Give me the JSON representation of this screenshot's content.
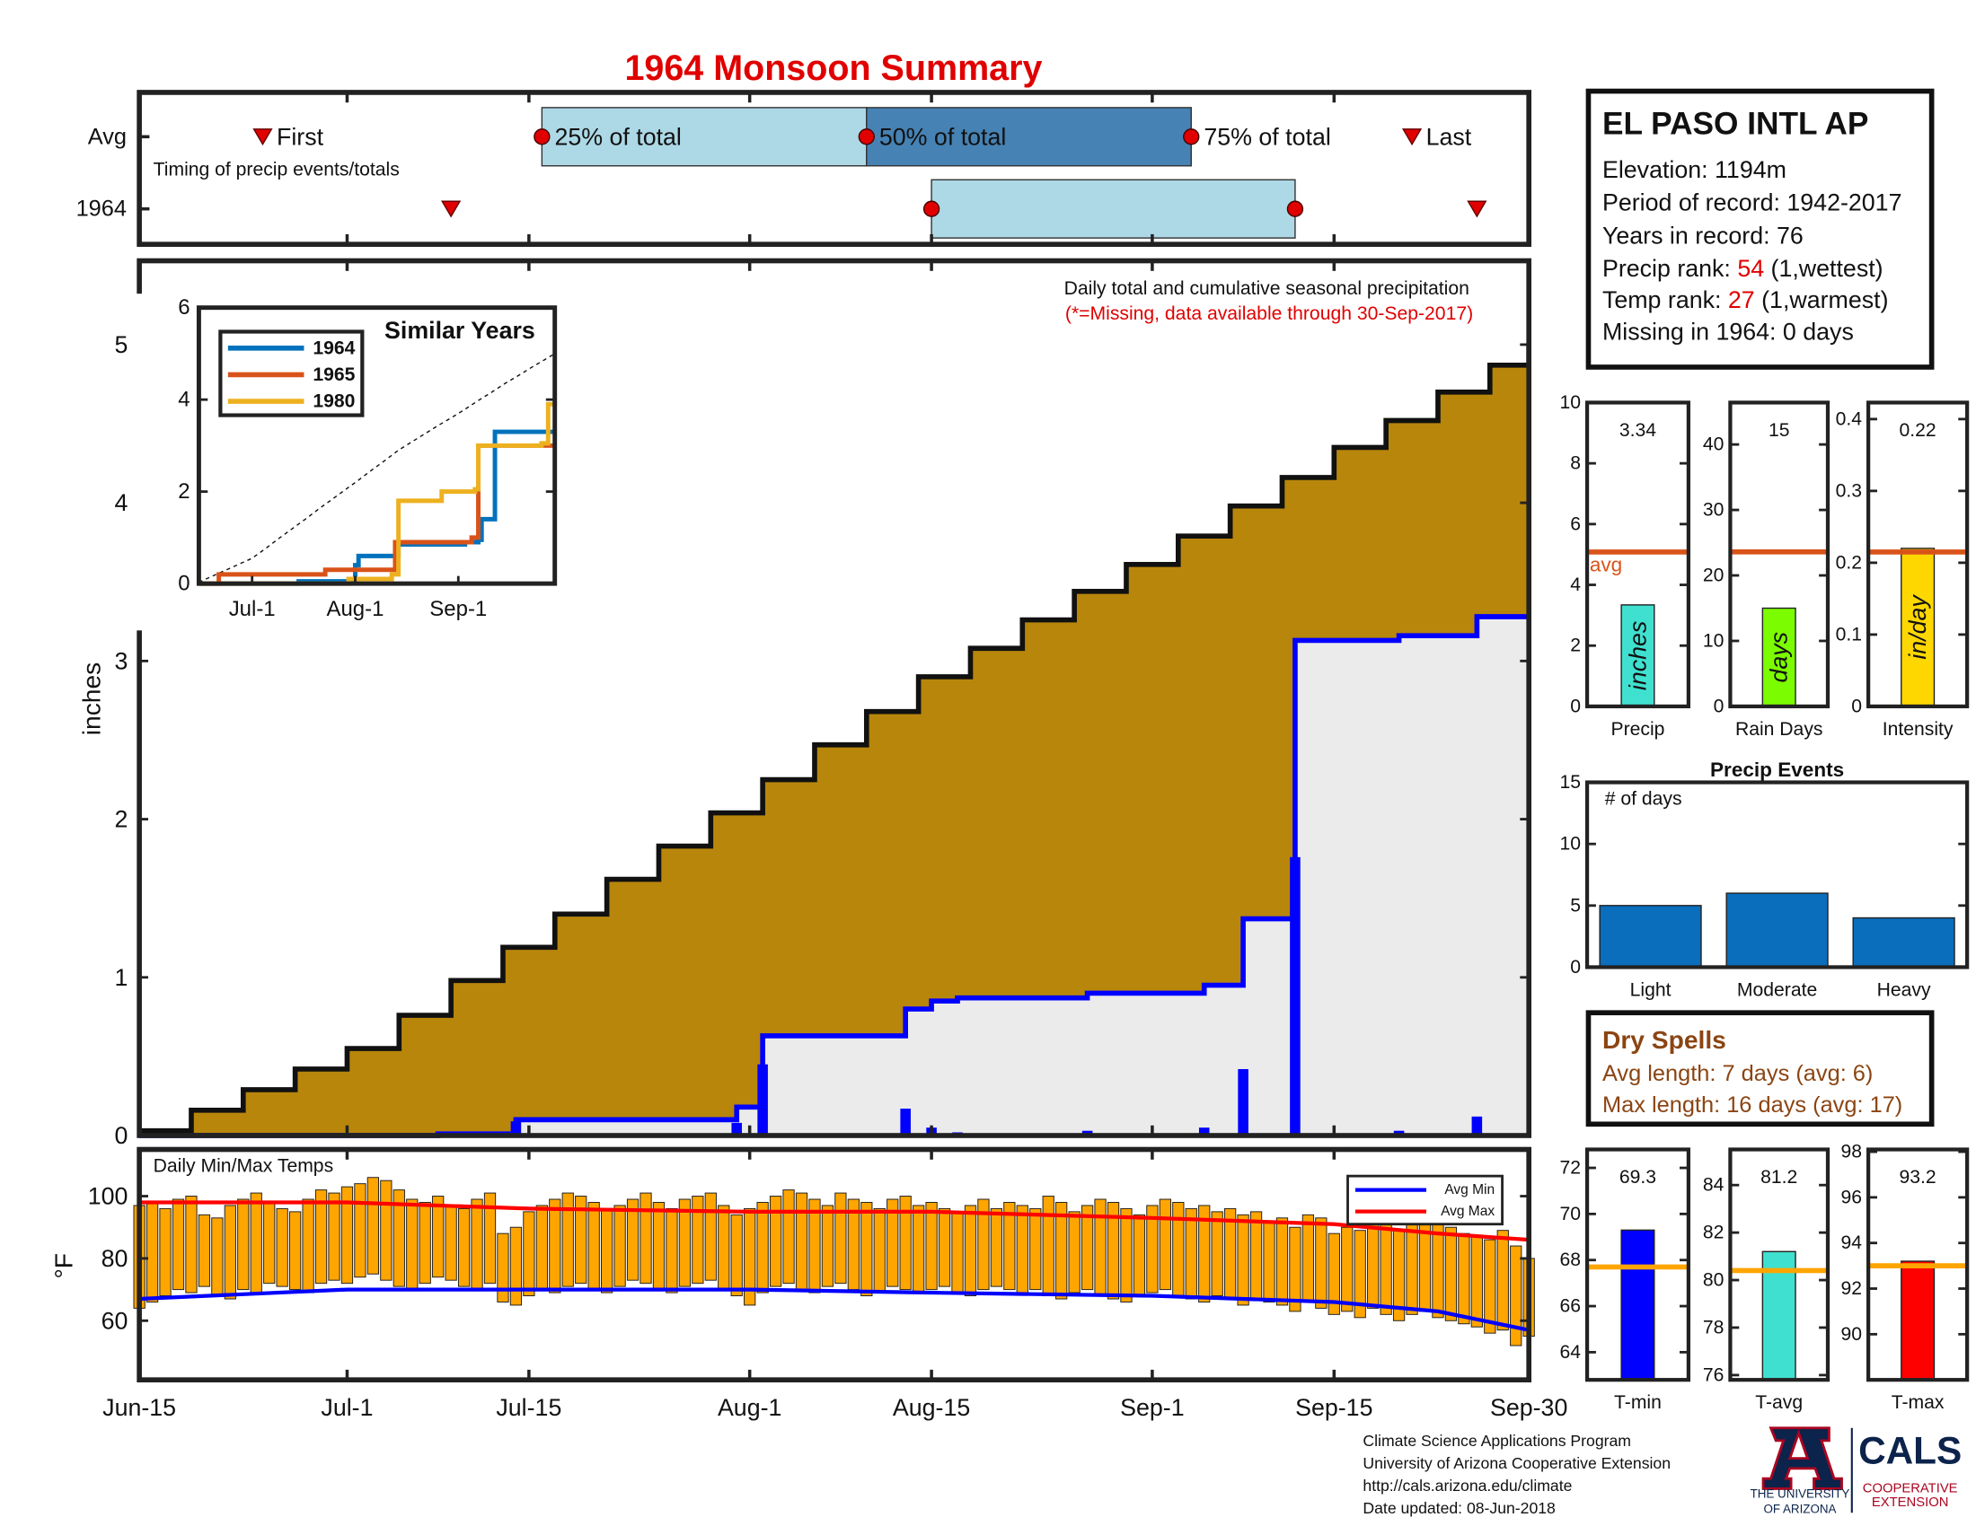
{
  "title": "1964 Monsoon Summary",
  "chart_data": [
    {
      "type": "timeline",
      "annotation": "Timing of precip events/totals",
      "xlim": [
        0,
        107
      ],
      "marker_labels": {
        "first": "First",
        "p25": "25% of total",
        "p50": "50% of total",
        "p75": "75% of total",
        "last": "Last"
      },
      "series": [
        {
          "name": "Avg",
          "first": 9.5,
          "p25": 31,
          "p50": 56,
          "p75": 81,
          "last": 98
        },
        {
          "name": "1964",
          "first": 24,
          "p25": 61,
          "p75": 89,
          "last": 103
        }
      ]
    },
    {
      "type": "step-area",
      "ylabel": "inches",
      "annotation": "Daily total and cumulative seasonal precipitation",
      "note": "(*=Missing, data available through 30-Sep-2017)",
      "xlim": [
        0,
        107
      ],
      "xticks": [
        {
          "value": 0,
          "label": "Jun-15"
        },
        {
          "value": 16,
          "label": "Jul-1"
        },
        {
          "value": 30,
          "label": "Jul-15"
        },
        {
          "value": 47,
          "label": "Aug-1"
        },
        {
          "value": 61,
          "label": "Aug-15"
        },
        {
          "value": 78,
          "label": "Sep-1"
        },
        {
          "value": 92,
          "label": "Sep-15"
        },
        {
          "value": 107,
          "label": "Sep-30"
        }
      ],
      "ylim": [
        0,
        5.53
      ],
      "yticks": [
        0,
        1,
        2,
        3,
        4,
        5
      ],
      "average": {
        "color": "#b8860b",
        "x": [
          0,
          4,
          8,
          12,
          16,
          20,
          24,
          28,
          32,
          36,
          40,
          44,
          48,
          52,
          56,
          60,
          64,
          68,
          72,
          76,
          80,
          84,
          88,
          92,
          96,
          100,
          104,
          107
        ],
        "values": [
          0.03,
          0.16,
          0.29,
          0.42,
          0.55,
          0.76,
          0.98,
          1.19,
          1.4,
          1.62,
          1.83,
          2.04,
          2.25,
          2.47,
          2.68,
          2.9,
          3.08,
          3.26,
          3.44,
          3.61,
          3.79,
          3.98,
          4.16,
          4.35,
          4.52,
          4.7,
          4.87,
          5.0
        ]
      },
      "cumulative": {
        "color": "#0000ff",
        "x": [
          0,
          23,
          29,
          46,
          48,
          59,
          61,
          63,
          73,
          82,
          85,
          89,
          97,
          103
        ],
        "values": [
          0,
          0.01,
          0.1,
          0.18,
          0.63,
          0.8,
          0.85,
          0.87,
          0.9,
          0.95,
          1.37,
          3.13,
          3.16,
          3.28
        ]
      },
      "daily": {
        "color": "#0000ff",
        "x": [
          23,
          29,
          46,
          48,
          59,
          61,
          63,
          73,
          82,
          85,
          89,
          97,
          103
        ],
        "values": [
          0.01,
          0.09,
          0.08,
          0.45,
          0.17,
          0.05,
          0.02,
          0.03,
          0.05,
          0.42,
          1.76,
          0.03,
          0.12
        ]
      }
    },
    {
      "type": "line",
      "title": "Similar Years",
      "xlim": [
        0,
        107
      ],
      "xticks": [
        {
          "value": 16,
          "label": "Jul-1"
        },
        {
          "value": 47,
          "label": "Aug-1"
        },
        {
          "value": 78,
          "label": "Sep-1"
        }
      ],
      "ylim": [
        0,
        6
      ],
      "yticks": [
        0,
        2,
        4,
        6
      ],
      "legend": "upper left",
      "series": [
        {
          "name": "1964",
          "color": "#0072bd",
          "x": [
            0,
            30,
            47,
            48,
            60,
            80,
            84,
            85,
            89,
            107
          ],
          "values": [
            0,
            0.05,
            0.4,
            0.6,
            0.85,
            0.9,
            0.95,
            1.4,
            3.3,
            3.3
          ]
        },
        {
          "name": "1965",
          "color": "#d95319",
          "x": [
            0,
            6,
            38,
            59,
            82,
            84,
            107
          ],
          "values": [
            0,
            0.2,
            0.3,
            0.9,
            1.0,
            3.0,
            3.0
          ]
        },
        {
          "name": "1980",
          "color": "#edb120",
          "x": [
            0,
            45,
            58,
            60,
            73,
            83,
            84,
            103,
            105,
            107
          ],
          "values": [
            0,
            0.1,
            0.2,
            1.8,
            2.0,
            2.05,
            3.0,
            3.05,
            3.9,
            3.95
          ]
        }
      ]
    },
    {
      "type": "bar-range",
      "title": "Daily Min/Max Temps",
      "ylabel": "°F",
      "xlim": [
        0,
        107
      ],
      "ylim": [
        41,
        115
      ],
      "yticks": [
        60,
        80,
        100
      ],
      "color": "#ffa500",
      "legend": "upper right",
      "max": [
        97,
        98,
        96,
        99,
        100,
        94,
        93,
        97,
        99,
        101,
        98,
        96,
        95,
        99,
        102,
        101,
        103,
        104,
        106,
        105,
        102,
        99,
        98,
        100,
        97,
        96,
        99,
        101,
        88,
        90,
        95,
        97,
        99,
        101,
        100,
        98,
        96,
        97,
        99,
        101,
        98,
        96,
        99,
        100,
        101,
        97,
        94,
        96,
        98,
        100,
        102,
        101,
        99,
        97,
        101,
        99,
        98,
        96,
        99,
        100,
        97,
        98,
        96,
        95,
        97,
        99,
        96,
        98,
        97,
        96,
        100,
        98,
        95,
        97,
        99,
        98,
        96,
        94,
        97,
        99,
        98,
        96,
        97,
        95,
        96,
        94,
        95,
        92,
        93,
        90,
        94,
        93,
        88,
        90,
        89,
        91,
        92,
        89,
        93,
        91,
        92,
        90,
        88,
        87,
        86,
        89,
        84,
        80
      ],
      "min": [
        64,
        66,
        68,
        70,
        69,
        71,
        68,
        67,
        70,
        69,
        72,
        71,
        70,
        69,
        72,
        73,
        72,
        74,
        75,
        73,
        71,
        70,
        72,
        74,
        73,
        71,
        70,
        72,
        66,
        65,
        68,
        70,
        69,
        71,
        72,
        70,
        69,
        71,
        73,
        72,
        70,
        69,
        71,
        72,
        73,
        70,
        68,
        65,
        69,
        71,
        72,
        70,
        69,
        71,
        72,
        70,
        68,
        69,
        71,
        70,
        69,
        70,
        71,
        69,
        68,
        70,
        71,
        70,
        69,
        70,
        68,
        67,
        69,
        70,
        68,
        67,
        66,
        68,
        69,
        70,
        68,
        67,
        66,
        68,
        67,
        65,
        67,
        66,
        65,
        63,
        66,
        64,
        62,
        63,
        61,
        64,
        62,
        60,
        62,
        63,
        61,
        60,
        59,
        58,
        56,
        57,
        52,
        55
      ],
      "series": [
        {
          "name": "Avg Min",
          "color": "#0000ff",
          "x": [
            0,
            16,
            30,
            47,
            61,
            78,
            92,
            100,
            107
          ],
          "values": [
            67,
            70,
            70,
            70,
            69,
            68,
            66,
            63,
            57
          ]
        },
        {
          "name": "Avg Max",
          "color": "#ff0000",
          "x": [
            0,
            16,
            30,
            47,
            61,
            78,
            92,
            100,
            107
          ],
          "values": [
            98,
            98,
            96,
            95,
            95,
            93,
            91,
            88,
            86
          ]
        }
      ]
    },
    {
      "type": "summary-bar",
      "label": "Precip",
      "unit": "inches",
      "value": 3.34,
      "avg": 5.08,
      "avg_label": "avg",
      "ylim": [
        0,
        10
      ],
      "yticks": [
        0,
        2,
        4,
        6,
        8,
        10
      ],
      "color": "#40e0d0",
      "avg_color": "#d95319"
    },
    {
      "type": "summary-bar",
      "label": "Rain Days",
      "unit": "days",
      "value": 15,
      "avg": 23.6,
      "ylim": [
        0,
        46.4
      ],
      "yticks": [
        0,
        10,
        20,
        30,
        40
      ],
      "color": "#7cfc00",
      "avg_color": "#d95319"
    },
    {
      "type": "summary-bar",
      "label": "Intensity",
      "unit": "in/day",
      "value": 0.22,
      "avg": 0.215,
      "ylim": [
        0,
        0.423
      ],
      "yticks": [
        0,
        0.1,
        0.2,
        0.3,
        0.4
      ],
      "color": "#ffd700",
      "avg_color": "#d95319"
    },
    {
      "type": "bar",
      "title": "Precip Events",
      "annotation": "# of days",
      "categories": [
        "Light",
        "Moderate",
        "Heavy"
      ],
      "values": [
        5,
        6,
        4
      ],
      "ylim": [
        0,
        15
      ],
      "yticks": [
        0,
        5,
        10,
        15
      ],
      "color": "#0a6ebd"
    },
    {
      "type": "summary-bar",
      "label": "T-min",
      "value": 69.3,
      "avg": 67.7,
      "ylim": [
        62.8,
        72.8
      ],
      "yticks": [
        64,
        66,
        68,
        70,
        72
      ],
      "color": "#0000ff",
      "avg_color": "#ffa500"
    },
    {
      "type": "summary-bar",
      "label": "T-avg",
      "value": 81.2,
      "avg": 80.4,
      "ylim": [
        75.8,
        85.5
      ],
      "yticks": [
        76,
        78,
        80,
        82,
        84
      ],
      "color": "#40e0d0",
      "avg_color": "#ffa500"
    },
    {
      "type": "summary-bar",
      "label": "T-max",
      "value": 93.2,
      "avg": 93.0,
      "ylim": [
        88.0,
        98.1
      ],
      "yticks": [
        90,
        92,
        94,
        96,
        98
      ],
      "color": "#ff0000",
      "avg_color": "#ffa500"
    }
  ],
  "station": {
    "name": "EL PASO INTL AP",
    "lines": [
      "Elevation: 1194m",
      "Period of record: 1942-2017",
      "Years in record: 76"
    ],
    "precip_rank": {
      "label": "Precip rank: ",
      "value": 54,
      "note": " (1,wettest)"
    },
    "temp_rank": {
      "label": "Temp rank: ",
      "value": 27,
      "note": " (1,warmest)"
    },
    "missing": "Missing in 1964: 0 days"
  },
  "dry_spells": {
    "title": "Dry Spells",
    "lines": [
      "Avg length: 7 days (avg: 6)",
      "Max length: 16 days (avg: 17)"
    ]
  },
  "footer": {
    "lines": [
      "Climate Science Applications Program",
      "University of Arizona Cooperative Extension",
      "http://cals.arizona.edu/climate",
      " Date updated: 08-Jun-2018"
    ],
    "logos": [
      "THE UNIVERSITY",
      "OF ARIZONA",
      "CALS",
      "COOPERATIVE",
      "EXTENSION"
    ]
  }
}
